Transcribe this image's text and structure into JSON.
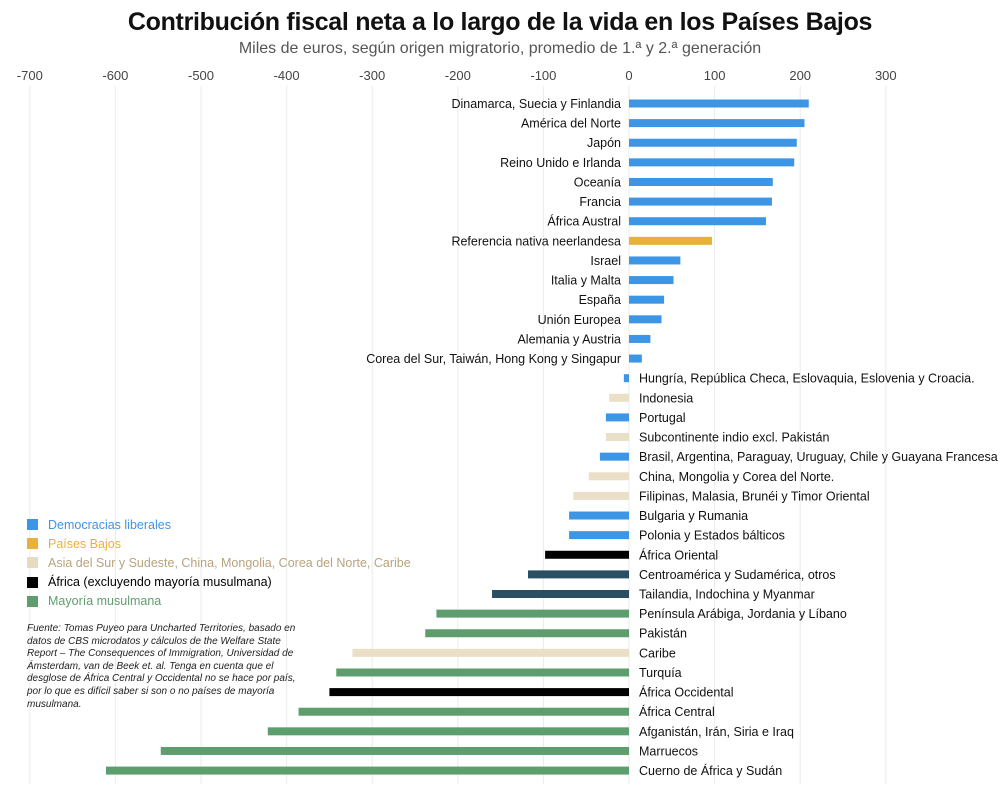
{
  "chart_data": {
    "type": "bar",
    "orientation": "horizontal",
    "title": "Contribución fiscal neta a lo largo de la vida en los Países Bajos",
    "subtitle": "Miles de euros, según origen migratorio, promedio de 1.ª y 2.ª generación",
    "xlim": [
      -700,
      300
    ],
    "xticks": [
      -700,
      -600,
      -500,
      -400,
      -300,
      -200,
      -100,
      0,
      100,
      200,
      300
    ],
    "grid": true,
    "legend_position": "left",
    "groups": [
      {
        "key": "lib",
        "name": "Democracias liberales",
        "color": "#3d95e6"
      },
      {
        "key": "nl",
        "name": "Países Bajos",
        "color": "#e8b13c"
      },
      {
        "key": "asia",
        "name": "Asia del Sur y Sudeste, China, Mongolia, Corea del Norte, Caribe",
        "color": "#eadfc7"
      },
      {
        "key": "afr",
        "name": "África (excluyendo mayoría musulmana)",
        "color": "#000000"
      },
      {
        "key": "mus",
        "name": "Mayoría musulmana",
        "color": "#5e9e6e"
      }
    ],
    "bars": [
      {
        "label": "Dinamarca, Suecia y Finlandia",
        "value": 210,
        "group": "lib"
      },
      {
        "label": "América del Norte",
        "value": 205,
        "group": "lib"
      },
      {
        "label": "Japón",
        "value": 196,
        "group": "lib"
      },
      {
        "label": "Reino Unido e Irlanda",
        "value": 193,
        "group": "lib"
      },
      {
        "label": "Oceanía",
        "value": 168,
        "group": "lib"
      },
      {
        "label": "Francia",
        "value": 167,
        "group": "lib"
      },
      {
        "label": "África Austral",
        "value": 160,
        "group": "lib"
      },
      {
        "label": "Referencia nativa neerlandesa",
        "value": 97,
        "group": "nl"
      },
      {
        "label": "Israel",
        "value": 60,
        "group": "lib"
      },
      {
        "label": "Italia y Malta",
        "value": 52,
        "group": "lib"
      },
      {
        "label": "España",
        "value": 41,
        "group": "lib"
      },
      {
        "label": "Unión Europea",
        "value": 38,
        "group": "lib"
      },
      {
        "label": "Alemania y Austria",
        "value": 25,
        "group": "lib"
      },
      {
        "label": "Corea del Sur, Taiwán, Hong Kong y Singapur",
        "value": 15,
        "group": "lib"
      },
      {
        "label": "Hungría, República Checa, Eslovaquia, Eslovenia y Croacia.",
        "value": -6,
        "group": "lib"
      },
      {
        "label": "Indonesia",
        "value": -23,
        "group": "asia"
      },
      {
        "label": "Portugal",
        "value": -27,
        "group": "lib"
      },
      {
        "label": "Subcontinente indio excl. Pakistán",
        "value": -27,
        "group": "asia"
      },
      {
        "label": "Brasil, Argentina, Paraguay, Uruguay, Chile y Guayana Francesa",
        "value": -34,
        "group": "lib"
      },
      {
        "label": "China, Mongolia y Corea del Norte.",
        "value": -47,
        "group": "asia"
      },
      {
        "label": "Filipinas, Malasia, Brunéi y Timor Oriental",
        "value": -65,
        "group": "asia"
      },
      {
        "label": "Bulgaria y Rumania",
        "value": -70,
        "group": "lib"
      },
      {
        "label": "Polonia y Estados bálticos",
        "value": -70,
        "group": "lib"
      },
      {
        "label": "África Oriental",
        "value": -98,
        "group": "afr"
      },
      {
        "label": "Centroamérica y Sudamérica, otros",
        "value": -118,
        "group": "other",
        "color": "#2a4f63"
      },
      {
        "label": "Tailandia, Indochina y Myanmar",
        "value": -160,
        "group": "other",
        "color": "#2a4f63"
      },
      {
        "label": "Península Arábiga, Jordania y Líbano",
        "value": -225,
        "group": "mus"
      },
      {
        "label": "Pakistán",
        "value": -238,
        "group": "mus"
      },
      {
        "label": "Caribe",
        "value": -323,
        "group": "asia"
      },
      {
        "label": "Turquía",
        "value": -342,
        "group": "mus"
      },
      {
        "label": "África Occidental",
        "value": -350,
        "group": "afr"
      },
      {
        "label": "África Central",
        "value": -386,
        "group": "mus"
      },
      {
        "label": "Afganistán, Irán, Siria e Iraq",
        "value": -422,
        "group": "mus"
      },
      {
        "label": "Marruecos",
        "value": -547,
        "group": "mus"
      },
      {
        "label": "Cuerno de África y Sudán",
        "value": -611,
        "group": "mus"
      }
    ]
  },
  "source_note": "Fuente: Tomas Puyeo para Uncharted Territories, basado en datos de CBS microdatos y cálculos de the Welfare State Report – The Consequences of Immigration, Universidad de Ámsterdam, van de Beek et. al. Tenga en cuenta que el desglose de África Central y Occidental no se hace por país, por lo que es difícil saber si son o no países de mayoría musulmana."
}
